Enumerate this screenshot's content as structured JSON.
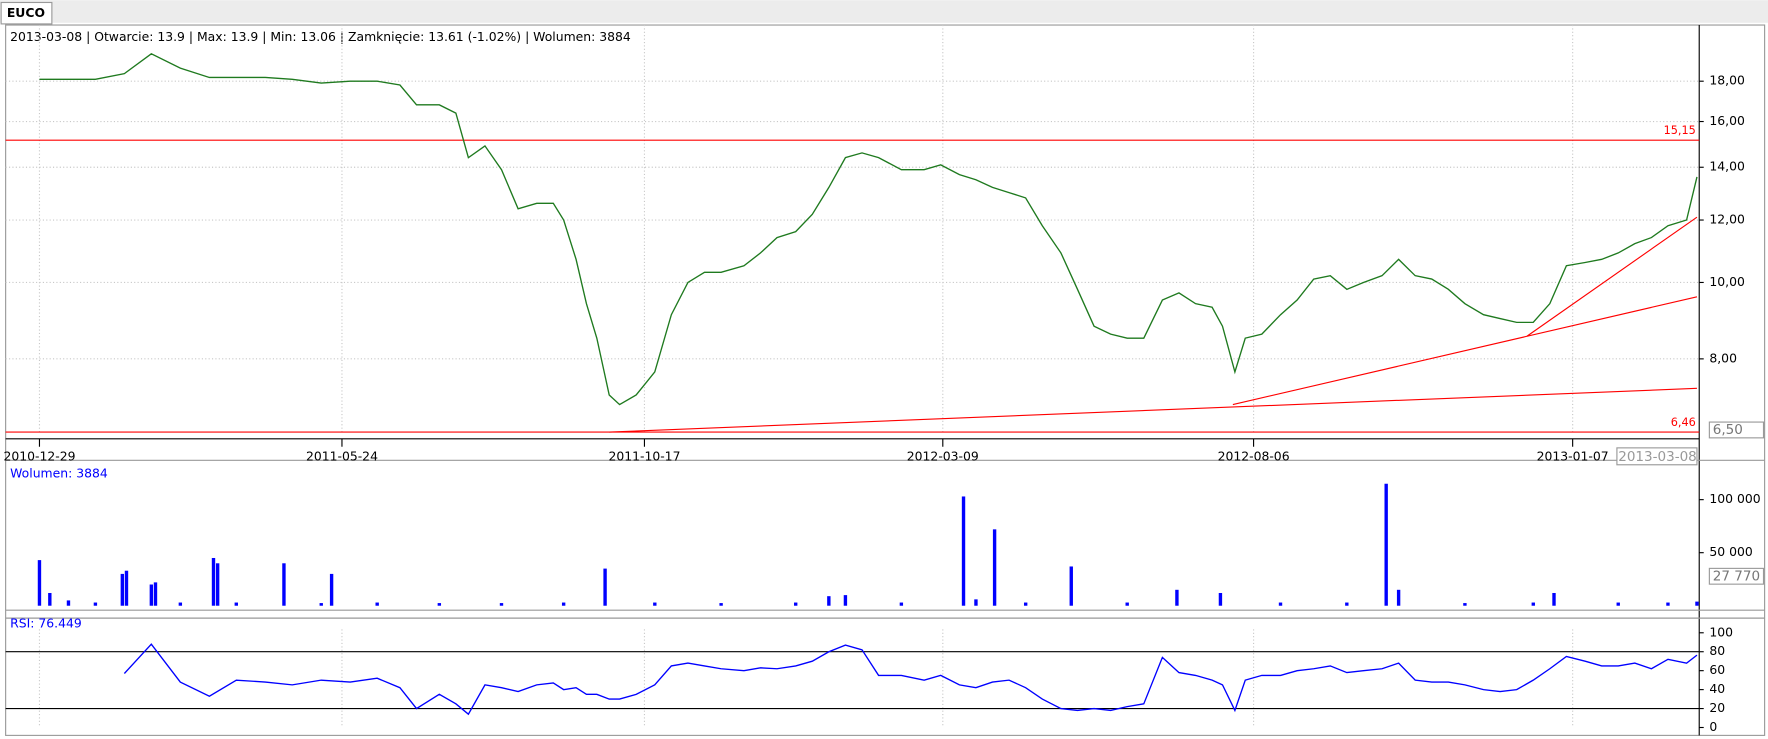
{
  "tab": "EUCO",
  "chart_data": [
    {
      "type": "line",
      "log": true,
      "grid": true,
      "title": "2013-03-08 | Otwarcie: 13.9 | Max: 13.9 | Min: 13.06 | Zamknięcie: 13.61 (-1.02%)  | Wolumen: 3884",
      "xlim": [
        "2010-12-29",
        "2013-03-08"
      ],
      "xticks": [
        "2010-12-29",
        "2011-05-24",
        "2011-10-17",
        "2012-03-09",
        "2012-08-06",
        "2013-01-07"
      ],
      "cursor_x": "2013-03-08",
      "cursor_y": {
        "value": 6.5,
        "label": "6,50"
      },
      "ylim": [
        6.46,
        21
      ],
      "yticks": [
        {
          "value": 8,
          "label": "8,00"
        },
        {
          "value": 10,
          "label": "10,00"
        },
        {
          "value": 12,
          "label": "12,00"
        },
        {
          "value": 14,
          "label": "14,00"
        },
        {
          "value": 16,
          "label": "16,00"
        },
        {
          "value": 18,
          "label": "18,00"
        }
      ],
      "hlines": [
        {
          "value": 15.15,
          "label": "15,15"
        },
        {
          "value": 6.46,
          "label": "6,46"
        }
      ],
      "hline_color": "#ff0000",
      "trendlines": [
        {
          "x": [
            "2011-09-30",
            "2013-03-08"
          ],
          "values": [
            6.46,
            7.34
          ]
        },
        {
          "x": [
            "2012-07-27",
            "2013-03-08"
          ],
          "values": [
            7.0,
            9.59
          ]
        },
        {
          "x": [
            "2012-12-16",
            "2013-03-08"
          ],
          "values": [
            8.55,
            12.1
          ]
        }
      ],
      "x": [
        "2010-12-29",
        "2011-01-12",
        "2011-01-25",
        "2011-02-08",
        "2011-02-21",
        "2011-03-07",
        "2011-03-21",
        "2011-04-03",
        "2011-04-17",
        "2011-04-30",
        "2011-05-14",
        "2011-05-28",
        "2011-06-10",
        "2011-06-21",
        "2011-06-29",
        "2011-07-10",
        "2011-07-18",
        "2011-07-24",
        "2011-08-01",
        "2011-08-09",
        "2011-08-17",
        "2011-08-26",
        "2011-09-03",
        "2011-09-08",
        "2011-09-14",
        "2011-09-19",
        "2011-09-24",
        "2011-09-30",
        "2011-10-05",
        "2011-10-13",
        "2011-10-22",
        "2011-10-30",
        "2011-11-07",
        "2011-11-15",
        "2011-11-23",
        "2011-12-04",
        "2011-12-12",
        "2011-12-20",
        "2011-12-29",
        "2012-01-06",
        "2012-01-14",
        "2012-01-22",
        "2012-01-30",
        "2012-02-07",
        "2012-02-18",
        "2012-02-29",
        "2012-03-08",
        "2012-03-17",
        "2012-03-25",
        "2012-04-02",
        "2012-04-10",
        "2012-04-18",
        "2012-04-26",
        "2012-05-05",
        "2012-05-13",
        "2012-05-21",
        "2012-05-29",
        "2012-06-06",
        "2012-06-14",
        "2012-06-23",
        "2012-07-01",
        "2012-07-09",
        "2012-07-17",
        "2012-07-22",
        "2012-07-28",
        "2012-08-02",
        "2012-08-10",
        "2012-08-19",
        "2012-08-27",
        "2012-09-04",
        "2012-09-12",
        "2012-09-20",
        "2012-09-28",
        "2012-10-07",
        "2012-10-15",
        "2012-10-23",
        "2012-10-31",
        "2012-11-08",
        "2012-11-16",
        "2012-11-25",
        "2012-12-03",
        "2012-12-11",
        "2012-12-19",
        "2012-12-27",
        "2013-01-04",
        "2013-01-13",
        "2013-01-21",
        "2013-01-29",
        "2013-02-06",
        "2013-02-14",
        "2013-02-22",
        "2013-03-03",
        "2013-03-08"
      ],
      "series": [
        {
          "color": "#1f7a1f",
          "values": [
            18.1,
            18.1,
            18.1,
            18.4,
            19.5,
            18.7,
            18.2,
            18.2,
            18.2,
            18.1,
            17.9,
            18.0,
            18.0,
            17.8,
            16.8,
            16.8,
            16.4,
            14.4,
            14.9,
            13.9,
            12.4,
            12.6,
            12.6,
            12.0,
            10.7,
            9.4,
            8.5,
            7.2,
            7.0,
            7.2,
            7.7,
            9.1,
            10.0,
            10.3,
            10.3,
            10.5,
            10.9,
            11.4,
            11.6,
            12.2,
            13.2,
            14.4,
            14.6,
            14.4,
            13.9,
            13.9,
            14.1,
            13.7,
            13.5,
            13.2,
            13.0,
            12.8,
            11.8,
            10.9,
            9.8,
            8.8,
            8.6,
            8.5,
            8.5,
            9.5,
            9.7,
            9.4,
            9.3,
            8.8,
            7.7,
            8.5,
            8.6,
            9.1,
            9.5,
            10.1,
            10.2,
            9.8,
            10.0,
            10.2,
            10.7,
            10.2,
            10.1,
            9.8,
            9.4,
            9.1,
            9.0,
            8.9,
            8.9,
            9.4,
            10.5,
            10.6,
            10.7,
            10.9,
            11.2,
            11.4,
            11.8,
            12.0,
            13.61
          ]
        }
      ]
    },
    {
      "type": "bar",
      "title": "Wolumen: 3884",
      "xlim": [
        "2010-12-29",
        "2013-03-08"
      ],
      "ylim": [
        0,
        135000
      ],
      "yticks": [
        {
          "value": 50000,
          "label": "50 000"
        },
        {
          "value": 100000,
          "label": "100 000"
        }
      ],
      "cursor_y": {
        "value": 27770,
        "label": "27 770"
      },
      "x": [
        "2010-12-29",
        "2011-01-03",
        "2011-01-12",
        "2011-01-25",
        "2011-02-07",
        "2011-02-09",
        "2011-02-21",
        "2011-02-23",
        "2011-03-07",
        "2011-03-23",
        "2011-03-25",
        "2011-04-03",
        "2011-04-26",
        "2011-05-14",
        "2011-05-19",
        "2011-06-10",
        "2011-07-10",
        "2011-08-09",
        "2011-09-08",
        "2011-09-28",
        "2011-10-22",
        "2011-11-23",
        "2011-12-29",
        "2012-01-14",
        "2012-01-22",
        "2012-02-18",
        "2012-03-19",
        "2012-03-25",
        "2012-04-03",
        "2012-04-18",
        "2012-05-10",
        "2012-06-06",
        "2012-06-30",
        "2012-07-21",
        "2012-08-19",
        "2012-09-20",
        "2012-10-09",
        "2012-10-15",
        "2012-11-16",
        "2012-12-19",
        "2012-12-29",
        "2013-01-29",
        "2013-02-22",
        "2013-03-08"
      ],
      "color": "#0000ff",
      "values": [
        43000,
        12000,
        5000,
        3000,
        30000,
        33000,
        20000,
        22000,
        3000,
        45000,
        40000,
        3000,
        40000,
        2500,
        30000,
        3000,
        2500,
        2500,
        3000,
        35000,
        3000,
        2500,
        3000,
        9000,
        10000,
        3000,
        103000,
        6000,
        72000,
        3000,
        37000,
        3000,
        15000,
        12000,
        3000,
        3000,
        115000,
        15000,
        2500,
        3000,
        12000,
        3000,
        3000,
        3884
      ]
    },
    {
      "type": "line",
      "title": "RSI: 76.449",
      "xlim": [
        "2010-12-29",
        "2013-03-08"
      ],
      "ylim": [
        0,
        100
      ],
      "yticks": [
        0,
        20,
        40,
        60,
        80,
        100
      ],
      "hlines": [
        20,
        80
      ],
      "hline_color": "#000000",
      "x": [
        "2010-12-29",
        "2011-01-12",
        "2011-01-25",
        "2011-02-08",
        "2011-02-21",
        "2011-03-07",
        "2011-03-21",
        "2011-04-03",
        "2011-04-17",
        "2011-04-30",
        "2011-05-14",
        "2011-05-28",
        "2011-06-10",
        "2011-06-21",
        "2011-06-29",
        "2011-07-10",
        "2011-07-18",
        "2011-07-24",
        "2011-08-01",
        "2011-08-09",
        "2011-08-17",
        "2011-08-26",
        "2011-09-03",
        "2011-09-08",
        "2011-09-14",
        "2011-09-19",
        "2011-09-24",
        "2011-09-30",
        "2011-10-05",
        "2011-10-13",
        "2011-10-22",
        "2011-10-30",
        "2011-11-07",
        "2011-11-15",
        "2011-11-23",
        "2011-12-04",
        "2011-12-12",
        "2011-12-20",
        "2011-12-29",
        "2012-01-06",
        "2012-01-14",
        "2012-01-22",
        "2012-01-30",
        "2012-02-07",
        "2012-02-18",
        "2012-02-29",
        "2012-03-08",
        "2012-03-17",
        "2012-03-25",
        "2012-04-02",
        "2012-04-10",
        "2012-04-18",
        "2012-04-26",
        "2012-05-05",
        "2012-05-13",
        "2012-05-21",
        "2012-05-29",
        "2012-06-06",
        "2012-06-14",
        "2012-06-23",
        "2012-07-01",
        "2012-07-09",
        "2012-07-17",
        "2012-07-22",
        "2012-07-28",
        "2012-08-02",
        "2012-08-10",
        "2012-08-19",
        "2012-08-27",
        "2012-09-04",
        "2012-09-12",
        "2012-09-20",
        "2012-09-28",
        "2012-10-07",
        "2012-10-15",
        "2012-10-23",
        "2012-10-31",
        "2012-11-08",
        "2012-11-16",
        "2012-11-25",
        "2012-12-03",
        "2012-12-11",
        "2012-12-19",
        "2012-12-27",
        "2013-01-04",
        "2013-01-13",
        "2013-01-21",
        "2013-01-29",
        "2013-02-06",
        "2013-02-14",
        "2013-02-22",
        "2013-03-03",
        "2013-03-08"
      ],
      "series": [
        {
          "color": "#0000ff",
          "values": [
            null,
            null,
            null,
            57,
            88,
            48,
            33,
            50,
            48,
            45,
            50,
            48,
            52,
            42,
            20,
            35,
            25,
            14,
            45,
            42,
            38,
            45,
            47,
            40,
            42,
            35,
            35,
            30,
            30,
            35,
            45,
            65,
            68,
            65,
            62,
            60,
            63,
            62,
            65,
            70,
            80,
            87,
            82,
            55,
            55,
            50,
            55,
            45,
            42,
            48,
            50,
            42,
            30,
            20,
            18,
            20,
            18,
            22,
            25,
            74,
            58,
            55,
            50,
            45,
            18,
            50,
            55,
            55,
            60,
            62,
            65,
            58,
            60,
            62,
            68,
            50,
            48,
            48,
            45,
            40,
            38,
            40,
            50,
            62,
            75,
            70,
            65,
            65,
            68,
            62,
            72,
            68,
            76.449
          ]
        }
      ]
    }
  ]
}
